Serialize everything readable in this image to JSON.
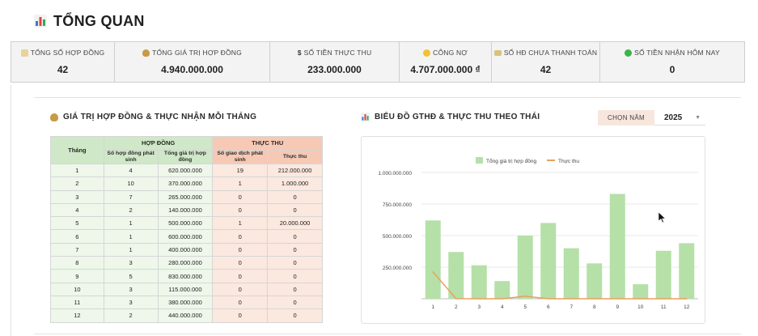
{
  "title": "TỔNG QUAN",
  "kpis": [
    {
      "label": "TỔNG SỐ HỢP ĐỒNG",
      "value": "42",
      "icon": "notebook-icon"
    },
    {
      "label": "TỔNG GIÁ TRỊ HỢP ĐỒNG",
      "value": "4.940.000.000",
      "icon": "money-bag-icon"
    },
    {
      "label": "SỐ TIỀN THỰC THU",
      "value": "233.000.000",
      "icon": "dollar-icon"
    },
    {
      "label": "CÔNG NỢ",
      "value": "4.707.000.000 ₫",
      "icon": "coin-icon"
    },
    {
      "label": "SỐ HĐ CHƯA THANH TOÁN",
      "value": "42",
      "icon": "card-icon"
    },
    {
      "label": "SỐ TIỀN NHẬN HÔM NAY",
      "value": "0",
      "icon": "green-circle-icon"
    }
  ],
  "table_section": {
    "title": "GIÁ TRỊ HỢP ĐỒNG & THỰC NHẬN MỖI THÁNG",
    "headers": {
      "month": "Tháng",
      "contract_group": "HỢP ĐỒNG",
      "revenue_group": "THỰC THU",
      "contracts_count": "Số hợp đồng phát sinh",
      "contracts_value": "Tổng giá trị hợp đồng",
      "transactions_count": "Số giao dịch phát sinh",
      "revenue": "Thực thu"
    },
    "rows": [
      [
        "1",
        "4",
        "620.000.000",
        "19",
        "212.000.000"
      ],
      [
        "2",
        "10",
        "370.000.000",
        "1",
        "1.000.000"
      ],
      [
        "3",
        "7",
        "265.000.000",
        "0",
        "0"
      ],
      [
        "4",
        "2",
        "140.000.000",
        "0",
        "0"
      ],
      [
        "5",
        "1",
        "500.000.000",
        "1",
        "20.000.000"
      ],
      [
        "6",
        "1",
        "600.000.000",
        "0",
        "0"
      ],
      [
        "7",
        "1",
        "400.000.000",
        "0",
        "0"
      ],
      [
        "8",
        "3",
        "280.000.000",
        "0",
        "0"
      ],
      [
        "9",
        "5",
        "830.000.000",
        "0",
        "0"
      ],
      [
        "10",
        "3",
        "115.000.000",
        "0",
        "0"
      ],
      [
        "11",
        "3",
        "380.000.000",
        "0",
        "0"
      ],
      [
        "12",
        "2",
        "440.000.000",
        "0",
        "0"
      ]
    ]
  },
  "chart_section": {
    "title": "BIỂU ĐỒ GTHĐ & THỰC THU THEO THÁI",
    "year_label": "CHỌN NĂM",
    "year_value": "2025"
  },
  "chart_data": {
    "type": "bar",
    "categories": [
      "1",
      "2",
      "3",
      "4",
      "5",
      "6",
      "7",
      "8",
      "9",
      "10",
      "11",
      "12"
    ],
    "series": [
      {
        "name": "Tổng giá trị hợp đồng",
        "type": "bar",
        "color": "#b5e0a8",
        "values": [
          620000000,
          370000000,
          265000000,
          140000000,
          500000000,
          600000000,
          400000000,
          280000000,
          830000000,
          115000000,
          380000000,
          440000000
        ]
      },
      {
        "name": "Thực thu",
        "type": "line",
        "color": "#e8a160",
        "values": [
          212000000,
          1000000,
          0,
          0,
          20000000,
          0,
          0,
          0,
          0,
          0,
          0,
          0
        ]
      }
    ],
    "y_ticks": [
      "1.000.000.000",
      "750.000.000",
      "500.000.000",
      "250.000.000"
    ],
    "ylim": [
      0,
      1000000000
    ],
    "legend_position": "top",
    "grid": true
  }
}
